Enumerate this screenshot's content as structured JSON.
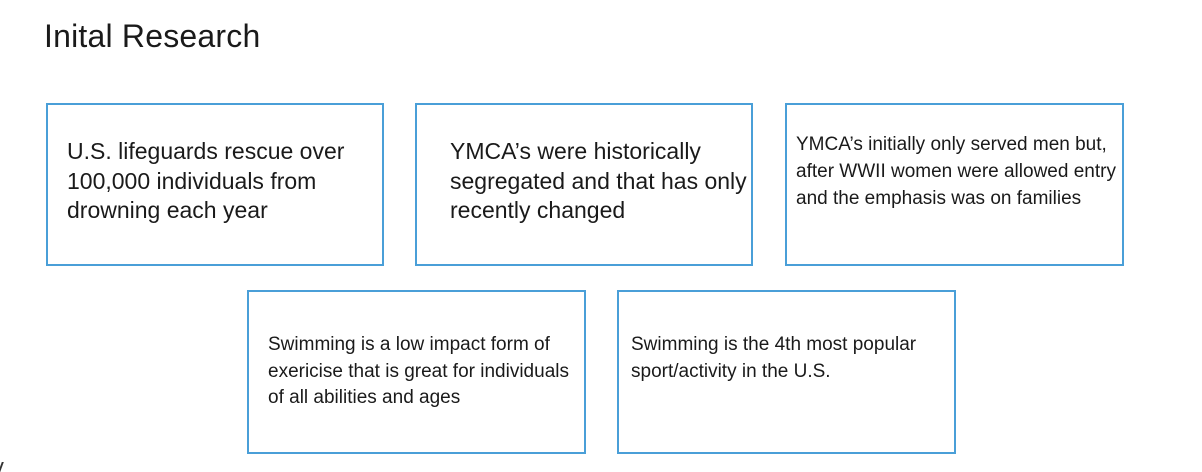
{
  "slide": {
    "title": "Inital Research"
  },
  "cards": [
    {
      "text": "U.S. lifeguards rescue over 100,000 individuals from drowning each year"
    },
    {
      "text": "YMCA’s were historically segregated and that has only recently changed"
    },
    {
      "text": "YMCA’s initially only served men but, after WWII women were allowed entry and the emphasis was on families"
    },
    {
      "text": "Swimming is a low impact form of exericise that is great for individuals of all abilities and ages"
    },
    {
      "text": "Swimming is the 4th most popular sport/activity in the U.S."
    }
  ],
  "colors": {
    "card_border": "#4a9fd8",
    "text": "#1a1a1a",
    "background": "#ffffff"
  }
}
